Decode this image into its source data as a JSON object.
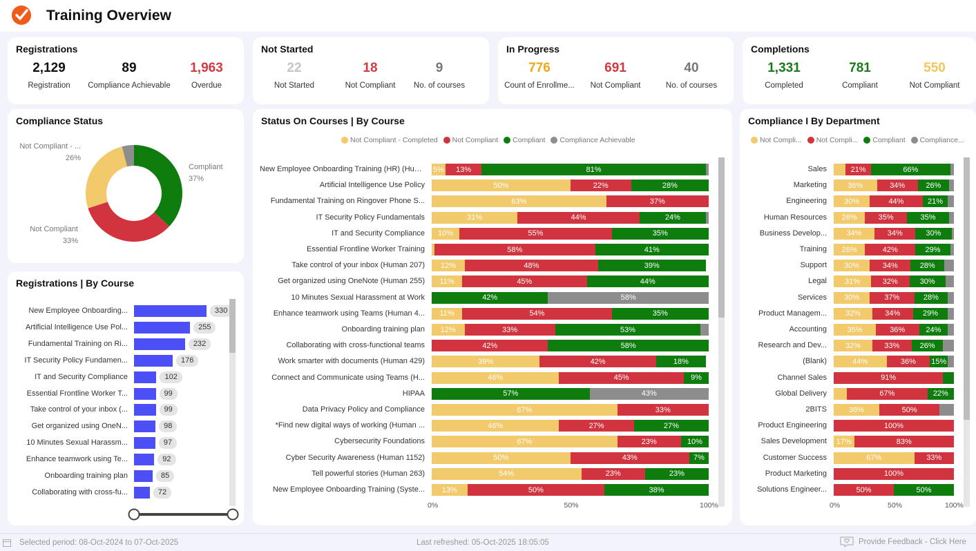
{
  "header": {
    "title": "Training Overview"
  },
  "registrations": {
    "title": "Registrations",
    "kpis": [
      {
        "value": "2,129",
        "label": "Registration",
        "color": "#111111"
      },
      {
        "value": "89",
        "label": "Compliance Achievable",
        "color": "#111111"
      },
      {
        "value": "1,963",
        "label": "Overdue",
        "color": "#d03a3f"
      }
    ]
  },
  "not_started": {
    "title": "Not Started",
    "kpis": [
      {
        "value": "22",
        "label": "Not Started",
        "color": "#c5c5c5"
      },
      {
        "value": "18",
        "label": "Not Compliant",
        "color": "#d03a3f"
      },
      {
        "value": "9",
        "label": "No. of courses",
        "color": "#777777"
      }
    ]
  },
  "in_progress": {
    "title": "In Progress",
    "kpis": [
      {
        "value": "776",
        "label": "Count of Enrollme...",
        "color": "#f0a81a"
      },
      {
        "value": "691",
        "label": "Not Compliant",
        "color": "#d03a3f"
      },
      {
        "value": "40",
        "label": "No. of courses",
        "color": "#777777"
      }
    ]
  },
  "completions": {
    "title": "Completions",
    "kpis": [
      {
        "value": "1,331",
        "label": "Completed",
        "color": "#1a7a1a"
      },
      {
        "value": "781",
        "label": "Compliant",
        "color": "#1a7a1a"
      },
      {
        "value": "550",
        "label": "Not Compliant",
        "color": "#f2c65a"
      }
    ]
  },
  "colors": {
    "yellow": "#f2c96b",
    "red": "#d1343f",
    "green": "#0e7d0e",
    "gray": "#8d8d8d",
    "bar_blue": "#4b4ff5"
  },
  "compliance_status": {
    "title": "Compliance Status",
    "slices": [
      {
        "name": "Compliant",
        "label": "Compliant",
        "percent_label": "37%",
        "value": 37,
        "color": "#0e7d0e"
      },
      {
        "name": "Not Compliant",
        "label": "Not Compliant",
        "percent_label": "33%",
        "value": 33,
        "color": "#d1343f"
      },
      {
        "name": "Not Compliant - Completed",
        "label": "Not Compliant - ...",
        "percent_label": "26%",
        "value": 26,
        "color": "#f2c96b"
      },
      {
        "name": "Compliance Achievable",
        "label": "",
        "percent_label": "",
        "value": 4,
        "color": "#8d8d8d"
      }
    ]
  },
  "registrations_by_course": {
    "title": "Registrations | By Course",
    "rows": [
      {
        "label": "New Employee Onboarding...",
        "value": 330
      },
      {
        "label": "Artificial Intelligence Use Pol...",
        "value": 255
      },
      {
        "label": "Fundamental Training on Ri...",
        "value": 232
      },
      {
        "label": "IT Security Policy Fundamen...",
        "value": 176
      },
      {
        "label": "IT and Security Compliance",
        "value": 102
      },
      {
        "label": "Essential Frontline Worker T...",
        "value": 99
      },
      {
        "label": "Take control of your inbox (...",
        "value": 99
      },
      {
        "label": "Get organized using OneN...",
        "value": 98
      },
      {
        "label": "10 Minutes Sexual Harassm...",
        "value": 97
      },
      {
        "label": "Enhance teamwork using Te...",
        "value": 92
      },
      {
        "label": "Onboarding training plan",
        "value": 85
      },
      {
        "label": "Collaborating with cross-fu...",
        "value": 72
      }
    ]
  },
  "status_by_course": {
    "title": "Status On Courses | By Course",
    "legend": [
      "Not Compliant - Completed",
      "Not Compliant",
      "Compliant",
      "Compliance Achievable"
    ],
    "axis": [
      "0%",
      "50%",
      "100%"
    ]
  },
  "compliance_by_department": {
    "title": "Compliance I By Department",
    "legend": [
      "Not Compli...",
      "Not Compli...",
      "Compliant",
      "Compliance..."
    ],
    "axis": [
      "0%",
      "50%",
      "100%"
    ]
  },
  "chart_data": [
    {
      "type": "bar",
      "title": "Status On Courses | By Course",
      "orientation": "horizontal-stacked-100",
      "categories": [
        "New Employee Onboarding Training (HR) (Human...",
        "Artificial Intelligence Use Policy",
        "Fundamental Training on Ringover Phone S...",
        "IT Security Policy Fundamentals",
        "IT and Security Compliance",
        "Essential Frontline Worker Training",
        "Take control of your inbox (Human 207)",
        "Get organized using OneNote (Human 255)",
        "10 Minutes Sexual Harassment at Work",
        "Enhance teamwork using Teams (Human 4...",
        "Onboarding training plan",
        "Collaborating with cross-functional teams",
        "Work smarter with documents (Human 429)",
        "Connect and Communicate using Teams (H...",
        "HIPAA",
        "Data Privacy Policy and Compliance",
        "*Find new digital ways of working (Human ...",
        "Cybersecurity Foundations",
        "Cyber Security Awareness (Human 1152)",
        "Tell powerful stories (Human 263)",
        "New Employee Onboarding Training (Syste..."
      ],
      "series": [
        {
          "name": "Not Compliant - Completed",
          "values": [
            5,
            50,
            63,
            31,
            10,
            1,
            12,
            11,
            0,
            11,
            12,
            0,
            39,
            46,
            0,
            67,
            46,
            67,
            50,
            54,
            13
          ]
        },
        {
          "name": "Not Compliant",
          "values": [
            13,
            22,
            37,
            44,
            55,
            58,
            48,
            45,
            0,
            54,
            33,
            42,
            42,
            45,
            0,
            33,
            27,
            23,
            43,
            23,
            50
          ]
        },
        {
          "name": "Compliant",
          "values": [
            81,
            28,
            0,
            24,
            35,
            41,
            39,
            44,
            42,
            35,
            53,
            58,
            18,
            9,
            57,
            0,
            27,
            10,
            7,
            23,
            38
          ]
        },
        {
          "name": "Compliance Achievable",
          "values": [
            1,
            0,
            0,
            1,
            0,
            0,
            0,
            0,
            58,
            0,
            3,
            0,
            0,
            0,
            43,
            0,
            0,
            0,
            0,
            0,
            0
          ]
        }
      ],
      "labels": [
        [
          "5%",
          "13%",
          "81%",
          ""
        ],
        [
          "50%",
          "22%",
          "28%",
          ""
        ],
        [
          "63%",
          "37%",
          "",
          ""
        ],
        [
          "31%",
          "44%",
          "24%",
          ""
        ],
        [
          "10%",
          "55%",
          "35%",
          ""
        ],
        [
          "",
          "58%",
          "41%",
          ""
        ],
        [
          "12%",
          "48%",
          "39%",
          ""
        ],
        [
          "11%",
          "45%",
          "44%",
          ""
        ],
        [
          "",
          "",
          "42%",
          "58%"
        ],
        [
          "11%",
          "54%",
          "35%",
          ""
        ],
        [
          "12%",
          "33%",
          "53%",
          ""
        ],
        [
          "",
          "42%",
          "58%",
          ""
        ],
        [
          "39%",
          "42%",
          "18%",
          ""
        ],
        [
          "46%",
          "45%",
          "9%",
          ""
        ],
        [
          "",
          "",
          "57%",
          "43%"
        ],
        [
          "67%",
          "33%",
          "",
          ""
        ],
        [
          "46%",
          "27%",
          "27%",
          ""
        ],
        [
          "67%",
          "23%",
          "10%",
          ""
        ],
        [
          "50%",
          "43%",
          "7%",
          ""
        ],
        [
          "54%",
          "23%",
          "23%",
          ""
        ],
        [
          "13%",
          "50%",
          "38%",
          ""
        ]
      ],
      "xlim": [
        0,
        100
      ]
    },
    {
      "type": "bar",
      "title": "Compliance I By Department",
      "orientation": "horizontal-stacked-100",
      "categories": [
        "Sales",
        "Marketing",
        "Engineering",
        "Human Resources",
        "Business Develop...",
        "Training",
        "Support",
        "Legal",
        "Services",
        "Product Managem...",
        "Accounting",
        "Research and Dev...",
        "(Blank)",
        "Channel Sales",
        "Global Delivery",
        "2BITS",
        "Product Engineering",
        "Sales Development",
        "Customer Success",
        "Product Marketing",
        "Solutions Engineer..."
      ],
      "series": [
        {
          "name": "Not Compliant - Completed",
          "values": [
            10,
            36,
            30,
            26,
            34,
            26,
            30,
            31,
            30,
            32,
            35,
            32,
            44,
            0,
            11,
            38,
            0,
            17,
            67,
            0,
            0
          ]
        },
        {
          "name": "Not Compliant",
          "values": [
            21,
            34,
            44,
            35,
            34,
            42,
            34,
            32,
            37,
            34,
            36,
            33,
            36,
            91,
            67,
            50,
            100,
            83,
            33,
            100,
            50
          ]
        },
        {
          "name": "Compliant",
          "values": [
            66,
            26,
            21,
            35,
            30,
            29,
            28,
            30,
            28,
            29,
            24,
            26,
            15,
            9,
            22,
            0,
            0,
            0,
            0,
            0,
            50
          ]
        },
        {
          "name": "Compliance Achievable",
          "values": [
            3,
            4,
            5,
            4,
            2,
            3,
            8,
            7,
            5,
            5,
            5,
            9,
            5,
            0,
            0,
            12,
            0,
            0,
            0,
            0,
            0
          ]
        }
      ],
      "labels": [
        [
          "",
          "21%",
          "66%",
          ""
        ],
        [
          "36%",
          "34%",
          "26%",
          ""
        ],
        [
          "30%",
          "44%",
          "21%",
          ""
        ],
        [
          "26%",
          "35%",
          "35%",
          ""
        ],
        [
          "34%",
          "34%",
          "30%",
          ""
        ],
        [
          "26%",
          "42%",
          "29%",
          ""
        ],
        [
          "30%",
          "34%",
          "28%",
          ""
        ],
        [
          "31%",
          "32%",
          "30%",
          ""
        ],
        [
          "30%",
          "37%",
          "28%",
          ""
        ],
        [
          "32%",
          "34%",
          "29%",
          ""
        ],
        [
          "35%",
          "36%",
          "24%",
          ""
        ],
        [
          "32%",
          "33%",
          "26%",
          ""
        ],
        [
          "44%",
          "36%",
          "15%",
          ""
        ],
        [
          "",
          "91%",
          "",
          ""
        ],
        [
          "",
          "67%",
          "22%",
          ""
        ],
        [
          "38%",
          "50%",
          "",
          ""
        ],
        [
          "",
          "100%",
          "",
          ""
        ],
        [
          "17%",
          "83%",
          "",
          ""
        ],
        [
          "67%",
          "33%",
          "",
          ""
        ],
        [
          "",
          "100%",
          "",
          ""
        ],
        [
          "",
          "50%",
          "50%",
          ""
        ]
      ],
      "xlim": [
        0,
        100
      ]
    }
  ],
  "footer": {
    "period": "Selected period: 08-Oct-2024 to 07-Oct-2025",
    "refreshed": "Last refreshed: 05-Oct-2025 18:05:05",
    "feedback": "Provide Feedback - Click Here"
  }
}
